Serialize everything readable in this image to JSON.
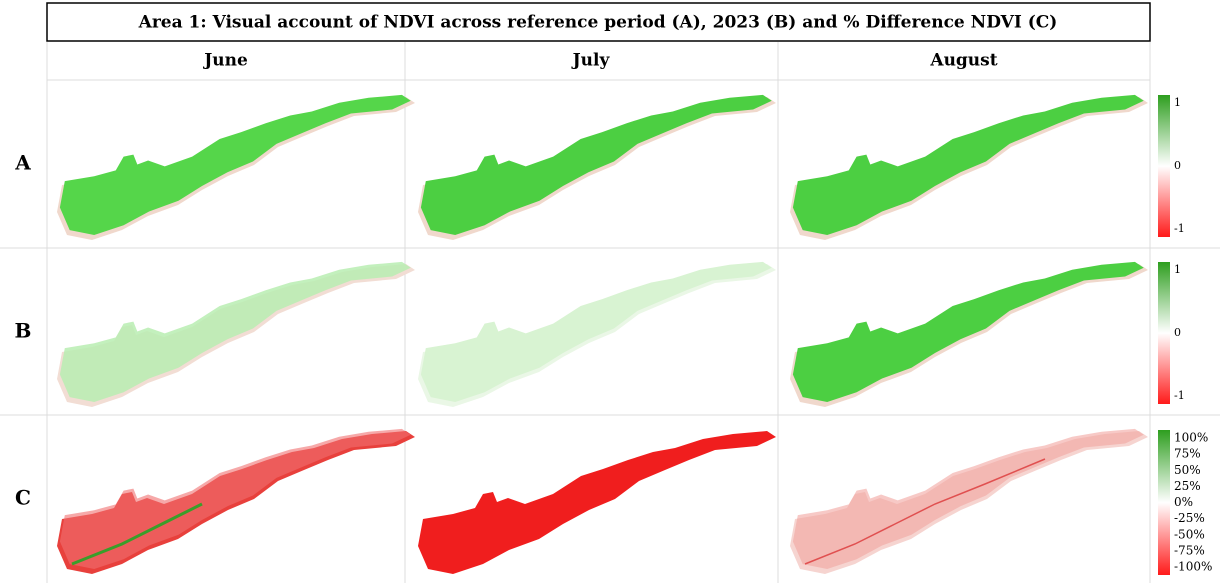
{
  "header": {
    "title": "Area 1: Visual account of NDVI across reference period (A), 2023 (B) and % Difference NDVI  (C)"
  },
  "columns": [
    "June",
    "July",
    "August"
  ],
  "rows": [
    "A",
    "B",
    "C"
  ],
  "legends": [
    {
      "labels": [
        "1",
        "0",
        "-1"
      ]
    },
    {
      "labels": [
        "1",
        "0",
        "-1"
      ]
    },
    {
      "labels": [
        "100%",
        "75%",
        "50%",
        "25%",
        "0%",
        "-25%",
        "-50%",
        "-75%",
        "-100%"
      ]
    }
  ]
}
